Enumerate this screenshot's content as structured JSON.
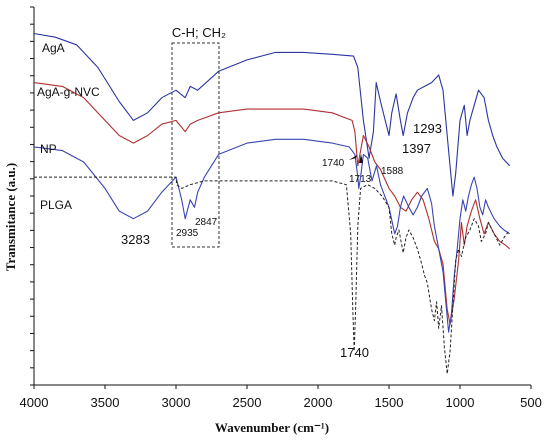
{
  "chart_data": {
    "type": "line",
    "xlabel": "Wavenumber (cm⁻¹)",
    "ylabel": "Transmitance (a.u.)",
    "xlim": [
      4000,
      500
    ],
    "ylim": [
      0,
      100
    ],
    "x_ticks": [
      "4000",
      "3500",
      "3000",
      "2500",
      "2000",
      "1500",
      "1000",
      "500"
    ],
    "box_label": "C-H; CH₂",
    "series": [
      {
        "name": "AgA",
        "color": "#2b35a0",
        "dash": "",
        "points": [
          [
            4000,
            93
          ],
          [
            3850,
            92
          ],
          [
            3700,
            90
          ],
          [
            3550,
            84
          ],
          [
            3400,
            75
          ],
          [
            3300,
            70
          ],
          [
            3200,
            72
          ],
          [
            3100,
            76
          ],
          [
            3000,
            78
          ],
          [
            2935,
            76
          ],
          [
            2900,
            79
          ],
          [
            2847,
            78
          ],
          [
            2700,
            83
          ],
          [
            2500,
            86
          ],
          [
            2300,
            88
          ],
          [
            2100,
            88
          ],
          [
            1900,
            87.5
          ],
          [
            1750,
            87
          ],
          [
            1720,
            84
          ],
          [
            1680,
            70
          ],
          [
            1640,
            60
          ],
          [
            1610,
            67
          ],
          [
            1590,
            80
          ],
          [
            1560,
            75
          ],
          [
            1500,
            66
          ],
          [
            1480,
            72
          ],
          [
            1450,
            77
          ],
          [
            1420,
            70
          ],
          [
            1400,
            66
          ],
          [
            1370,
            72
          ],
          [
            1330,
            76
          ],
          [
            1300,
            78
          ],
          [
            1250,
            79
          ],
          [
            1200,
            80
          ],
          [
            1150,
            82
          ],
          [
            1120,
            78
          ],
          [
            1080,
            62
          ],
          [
            1050,
            50
          ],
          [
            1030,
            56
          ],
          [
            1000,
            70
          ],
          [
            970,
            74
          ],
          [
            950,
            66
          ],
          [
            930,
            70
          ],
          [
            900,
            74
          ],
          [
            870,
            78
          ],
          [
            830,
            76
          ],
          [
            800,
            70
          ],
          [
            770,
            66
          ],
          [
            740,
            63
          ],
          [
            700,
            60
          ],
          [
            650,
            58
          ]
        ]
      },
      {
        "name": "AgA-g-NVC",
        "color": "#b03030",
        "dash": "",
        "points": [
          [
            4000,
            80
          ],
          [
            3800,
            79
          ],
          [
            3650,
            76
          ],
          [
            3500,
            70
          ],
          [
            3400,
            66
          ],
          [
            3300,
            64
          ],
          [
            3200,
            66
          ],
          [
            3100,
            69
          ],
          [
            3000,
            70
          ],
          [
            2935,
            67
          ],
          [
            2900,
            69
          ],
          [
            2847,
            70
          ],
          [
            2700,
            72
          ],
          [
            2500,
            73
          ],
          [
            2300,
            73
          ],
          [
            2100,
            73
          ],
          [
            1900,
            72
          ],
          [
            1760,
            70
          ],
          [
            1740,
            67
          ],
          [
            1720,
            58
          ],
          [
            1700,
            62
          ],
          [
            1680,
            66
          ],
          [
            1640,
            63
          ],
          [
            1600,
            59
          ],
          [
            1560,
            57
          ],
          [
            1500,
            52
          ],
          [
            1460,
            50
          ],
          [
            1420,
            47
          ],
          [
            1380,
            46
          ],
          [
            1340,
            49
          ],
          [
            1300,
            51
          ],
          [
            1260,
            49
          ],
          [
            1220,
            44
          ],
          [
            1180,
            38
          ],
          [
            1150,
            36
          ],
          [
            1120,
            32
          ],
          [
            1090,
            20
          ],
          [
            1070,
            16
          ],
          [
            1040,
            23
          ],
          [
            1010,
            33
          ],
          [
            990,
            43
          ],
          [
            970,
            37
          ],
          [
            950,
            42
          ],
          [
            920,
            46
          ],
          [
            890,
            49
          ],
          [
            860,
            44
          ],
          [
            830,
            40
          ],
          [
            800,
            43
          ],
          [
            760,
            40
          ],
          [
            720,
            38
          ],
          [
            680,
            37
          ],
          [
            650,
            36
          ]
        ]
      },
      {
        "name": "NP",
        "color": "#3a45b0",
        "dash": "",
        "points": [
          [
            4000,
            63
          ],
          [
            3800,
            62
          ],
          [
            3650,
            59
          ],
          [
            3500,
            52
          ],
          [
            3400,
            46
          ],
          [
            3300,
            44
          ],
          [
            3200,
            46
          ],
          [
            3100,
            51
          ],
          [
            3000,
            55
          ],
          [
            2960,
            49
          ],
          [
            2935,
            44
          ],
          [
            2900,
            49
          ],
          [
            2870,
            47
          ],
          [
            2847,
            51
          ],
          [
            2800,
            55
          ],
          [
            2700,
            61
          ],
          [
            2500,
            64
          ],
          [
            2300,
            65
          ],
          [
            2100,
            65
          ],
          [
            1900,
            64
          ],
          [
            1780,
            63
          ],
          [
            1740,
            61
          ],
          [
            1720,
            55
          ],
          [
            1713,
            52
          ],
          [
            1700,
            55
          ],
          [
            1680,
            61
          ],
          [
            1650,
            60
          ],
          [
            1620,
            54
          ],
          [
            1588,
            58
          ],
          [
            1560,
            53
          ],
          [
            1500,
            47
          ],
          [
            1460,
            40
          ],
          [
            1440,
            42
          ],
          [
            1420,
            47
          ],
          [
            1397,
            50
          ],
          [
            1360,
            47
          ],
          [
            1330,
            45
          ],
          [
            1300,
            47
          ],
          [
            1270,
            50
          ],
          [
            1230,
            52
          ],
          [
            1200,
            48
          ],
          [
            1180,
            42
          ],
          [
            1150,
            36
          ],
          [
            1120,
            30
          ],
          [
            1100,
            22
          ],
          [
            1080,
            14
          ],
          [
            1060,
            19
          ],
          [
            1040,
            29
          ],
          [
            1020,
            36
          ],
          [
            1000,
            44
          ],
          [
            980,
            49
          ],
          [
            960,
            46
          ],
          [
            940,
            50
          ],
          [
            920,
            53
          ],
          [
            900,
            55
          ],
          [
            880,
            52
          ],
          [
            860,
            47
          ],
          [
            840,
            45
          ],
          [
            820,
            49
          ],
          [
            800,
            47
          ],
          [
            760,
            44
          ],
          [
            720,
            42
          ],
          [
            690,
            41
          ],
          [
            650,
            40
          ]
        ]
      },
      {
        "name": "PLGA",
        "color": "#222222",
        "dash": "3 2",
        "points": [
          [
            4000,
            55
          ],
          [
            3800,
            55
          ],
          [
            3600,
            55
          ],
          [
            3400,
            55
          ],
          [
            3200,
            55
          ],
          [
            3000,
            55
          ],
          [
            2995,
            53
          ],
          [
            2960,
            52
          ],
          [
            2900,
            53
          ],
          [
            2800,
            54
          ],
          [
            2600,
            54
          ],
          [
            2400,
            54
          ],
          [
            2200,
            54
          ],
          [
            2000,
            54
          ],
          [
            1900,
            54
          ],
          [
            1800,
            53
          ],
          [
            1770,
            40
          ],
          [
            1755,
            20
          ],
          [
            1745,
            9
          ],
          [
            1735,
            20
          ],
          [
            1720,
            42
          ],
          [
            1700,
            52
          ],
          [
            1650,
            53
          ],
          [
            1600,
            52
          ],
          [
            1550,
            50
          ],
          [
            1500,
            47
          ],
          [
            1480,
            40
          ],
          [
            1460,
            37
          ],
          [
            1450,
            39
          ],
          [
            1430,
            41
          ],
          [
            1400,
            35
          ],
          [
            1380,
            39
          ],
          [
            1360,
            41
          ],
          [
            1330,
            39
          ],
          [
            1300,
            36
          ],
          [
            1270,
            32
          ],
          [
            1250,
            29
          ],
          [
            1230,
            27
          ],
          [
            1200,
            20
          ],
          [
            1180,
            17
          ],
          [
            1165,
            22
          ],
          [
            1150,
            15
          ],
          [
            1130,
            21
          ],
          [
            1110,
            10
          ],
          [
            1090,
            3
          ],
          [
            1070,
            9
          ],
          [
            1050,
            21
          ],
          [
            1030,
            33
          ],
          [
            1010,
            36
          ],
          [
            990,
            34
          ],
          [
            960,
            39
          ],
          [
            930,
            41
          ],
          [
            900,
            44
          ],
          [
            870,
            42
          ],
          [
            850,
            38
          ],
          [
            820,
            40
          ],
          [
            800,
            43
          ],
          [
            760,
            40
          ],
          [
            720,
            37
          ],
          [
            690,
            39
          ],
          [
            650,
            41
          ]
        ]
      }
    ],
    "annotations": [
      {
        "text": "3283",
        "x": 3283,
        "y": 35.5
      },
      {
        "text": "2935",
        "x": 2935,
        "y": 37.7
      },
      {
        "text": "2847",
        "x": 2847,
        "y": 40.6
      },
      {
        "text": "1740",
        "x": 1740,
        "y": 1.5
      },
      {
        "text": "1740",
        "x": 1740,
        "y": 56.5
      },
      {
        "text": "1713",
        "x": 1713,
        "y": 52.7
      },
      {
        "text": "1588",
        "x": 1588,
        "y": 54.2
      },
      {
        "text": "1397",
        "x": 1397,
        "y": 58.8
      },
      {
        "text": "1293",
        "x": 1293,
        "y": 65.2
      }
    ]
  }
}
